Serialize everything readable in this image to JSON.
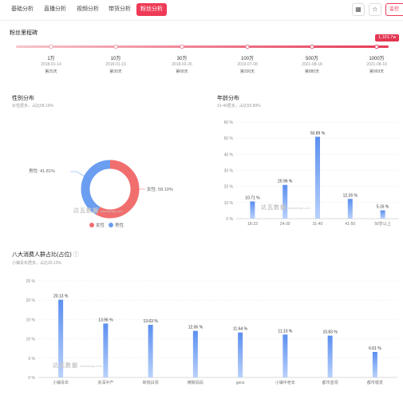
{
  "nav": {
    "tabs": [
      "基础分析",
      "直播分析",
      "视频分析",
      "带货分析",
      "粉丝分析"
    ],
    "active_tab": 4,
    "action_label": "监控"
  },
  "milestones": {
    "title": "粉丝里程碑",
    "current_badge": "1,101.7w",
    "items": [
      {
        "value": "1万",
        "date": "2018-01-14",
        "days": "第25天"
      },
      {
        "value": "10万",
        "date": "2018-01-19",
        "days": "第30天"
      },
      {
        "value": "30万",
        "date": "2018-02-26",
        "days": "第68天"
      },
      {
        "value": "100万",
        "date": "2019-07-08",
        "days": "第200天"
      },
      {
        "value": "500万",
        "date": "2021-08-18",
        "days": "第880天"
      },
      {
        "value": "1000万",
        "date": "2021-08-18",
        "days": "第969天"
      }
    ]
  },
  "gender": {
    "title": "性别分布",
    "subtitle": "女性居多，占比58.19%",
    "male_label": "男性: 41.81%",
    "female_label": "女性: 58.19%",
    "legend_female": "女性",
    "legend_male": "男性",
    "watermark": "达瓦数据",
    "watermark_sub": "dawashuju.com",
    "colors": {
      "female": "#f16e6e",
      "male": "#6b9df0"
    }
  },
  "age": {
    "title": "年龄分布",
    "subtitle": "31-40居多，占比50.89%",
    "watermark": "达瓦数据",
    "watermark_sub": "dawashuju.com"
  },
  "crowd": {
    "title": "八大消费人群占比(占位)",
    "info_icon": "ⓘ",
    "subtitle": "小镇青年居多，占比20.13%",
    "watermark": "达瓦数据",
    "watermark_sub": "dawashuju.com"
  },
  "chart_data": [
    {
      "type": "pie",
      "labels": [
        "女性",
        "男性"
      ],
      "values": [
        58.19,
        41.81
      ]
    },
    {
      "type": "bar",
      "categories": [
        "18-23",
        "24-30",
        "31-40",
        "41-50",
        "50岁以上"
      ],
      "values": [
        10.71,
        20.96,
        50.89,
        12.26,
        5.16
      ],
      "value_labels": [
        "10.71 %",
        "20.96 %",
        "50.89 %",
        "12.26 %",
        "5.16 %"
      ],
      "yticks": [
        "0 %",
        "10 %",
        "20 %",
        "30 %",
        "40 %",
        "50 %",
        "60 %"
      ],
      "ylim": [
        0,
        60
      ]
    },
    {
      "type": "bar",
      "categories": [
        "小镇青年",
        "资深中产",
        "新锐白领",
        "精致妈妈",
        "genz",
        "小镇中老年",
        "都市蓝领",
        "都市银发"
      ],
      "values": [
        20.13,
        13.96,
        13.63,
        12.06,
        11.64,
        11.1,
        10.83,
        6.61
      ],
      "value_labels": [
        "20.13 %",
        "13.96 %",
        "13.63 %",
        "12.06 %",
        "11.64 %",
        "11.10 %",
        "10.83 %",
        "6.61 %"
      ],
      "yticks": [
        "0 %",
        "5 %",
        "10 %",
        "15 %",
        "20 %",
        "25 %"
      ],
      "ylim": [
        0,
        25
      ]
    }
  ]
}
